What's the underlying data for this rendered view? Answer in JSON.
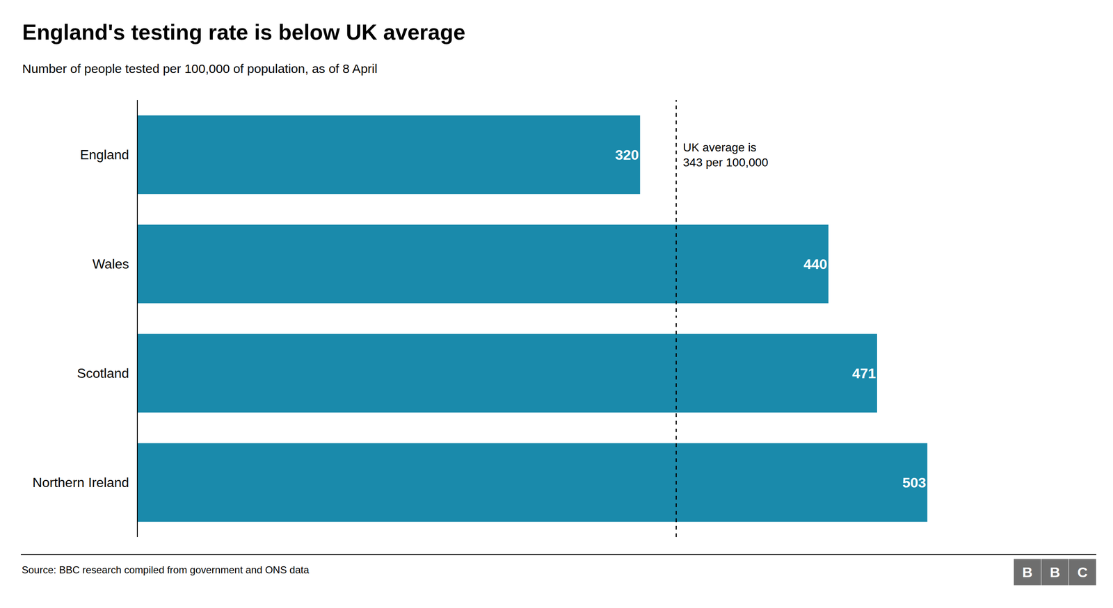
{
  "chart_data": {
    "type": "bar",
    "orientation": "horizontal",
    "title": "England's testing rate is below UK average",
    "subtitle": "Number of people tested per 100,000 of population, as of 8 April",
    "source": "Source: BBC research compiled from government and ONS data",
    "categories": [
      "England",
      "Wales",
      "Scotland",
      "Northern Ireland"
    ],
    "values": [
      320,
      440,
      471,
      503
    ],
    "color": "#1a8aab",
    "data_labels": true,
    "xlim": [
      0,
      600
    ],
    "tick_labels": "y",
    "grid": false,
    "reference_line": {
      "value": 343,
      "label": "UK average is\n343 per 100,000"
    },
    "logo": {
      "letters": [
        "B",
        "B",
        "C"
      ],
      "color": "#6e6e6e"
    }
  }
}
